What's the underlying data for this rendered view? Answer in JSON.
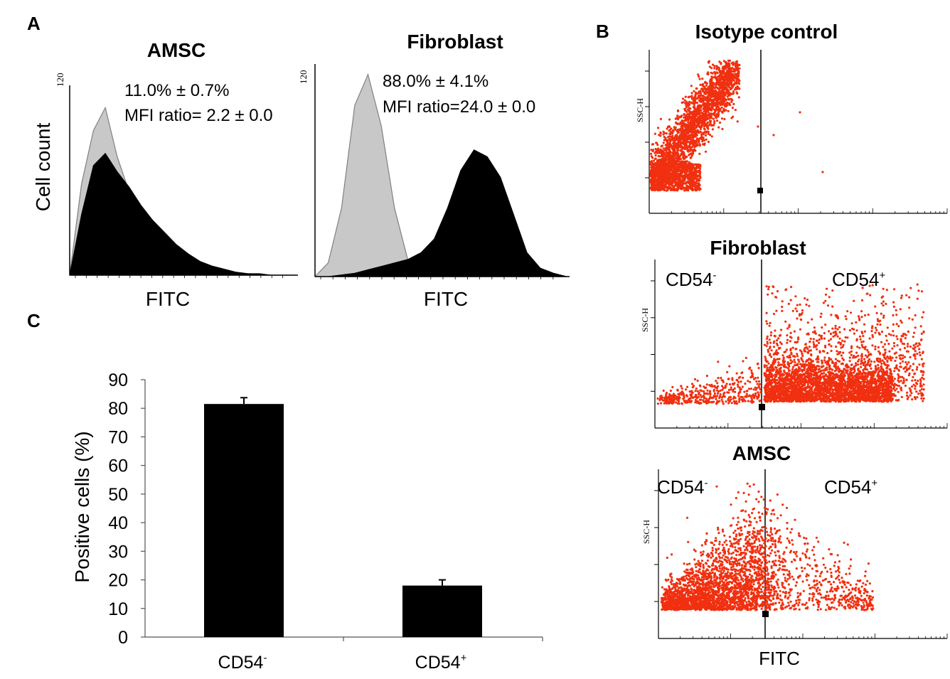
{
  "panels": {
    "A": {
      "label": "A",
      "left": {
        "title": "AMSC",
        "stat_line1": "11.0% ± 0.7%",
        "stat_line2": "MFI ratio= 2.2 ± 0.0",
        "ytick": "120",
        "ylabel": "Cell count",
        "xlabel": "FITC"
      },
      "right": {
        "title": "Fibroblast",
        "stat_line1": "88.0% ± 4.1%",
        "stat_line2": "MFI ratio=24.0 ± 0.0",
        "ytick": "120",
        "xlabel": "FITC"
      }
    },
    "B": {
      "label": "B",
      "plots": [
        {
          "title": "Isotype control",
          "ylabel": "SSC-H",
          "neg_label": "",
          "pos_label": ""
        },
        {
          "title": "Fibroblast",
          "ylabel": "SSC-H",
          "neg_label": "CD54",
          "neg_sup": "-",
          "pos_label": "CD54",
          "pos_sup": "+"
        },
        {
          "title": "AMSC",
          "ylabel": "SSC-H",
          "neg_label": "CD54",
          "neg_sup": "-",
          "pos_label": "CD54",
          "pos_sup": "+"
        }
      ],
      "xlabel": "FITC"
    },
    "C": {
      "label": "C",
      "ylabel": "Positive cells (%)",
      "cat1": "CD54",
      "cat1_sup": "-",
      "cat2": "CD54",
      "cat2_sup": "+"
    }
  },
  "colors": {
    "dot": "#f03010",
    "bar": "#000000",
    "hist_control": "#c8c8c8",
    "hist_control_outline": "#808080",
    "hist_sample": "#000000"
  },
  "chart_data": [
    {
      "type": "area",
      "panel": "A-left",
      "title": "AMSC",
      "xlabel": "FITC",
      "ylabel": "Cell count",
      "ylim": [
        0,
        120
      ],
      "annotations": [
        "11.0% ± 0.7%",
        "MFI ratio= 2.2 ± 0.0"
      ],
      "series": [
        {
          "values": [
            0,
            60,
            95,
            110,
            78,
            55,
            42,
            32,
            24,
            17,
            12,
            8,
            5,
            3,
            2,
            1,
            0,
            0,
            0,
            0
          ]
        },
        {
          "values": [
            0,
            40,
            72,
            80,
            68,
            58,
            46,
            36,
            28,
            20,
            14,
            9,
            6,
            4,
            2,
            1,
            1,
            0,
            0,
            0
          ]
        }
      ]
    },
    {
      "type": "area",
      "panel": "A-right",
      "title": "Fibroblast",
      "xlabel": "FITC",
      "ylim": [
        0,
        120
      ],
      "annotations": [
        "88.0% ± 4.1%",
        "MFI ratio=24.0 ± 0.0"
      ],
      "series": [
        {
          "values": [
            0,
            8,
            40,
            100,
            118,
            88,
            40,
            10,
            2,
            0,
            0,
            0,
            0,
            0,
            0,
            0,
            0,
            0,
            0,
            0
          ]
        },
        {
          "values": [
            0,
            0,
            1,
            2,
            4,
            6,
            8,
            10,
            14,
            22,
            40,
            62,
            74,
            70,
            58,
            36,
            14,
            5,
            2,
            0
          ]
        }
      ]
    },
    {
      "type": "scatter",
      "panel": "B-isotype",
      "title": "Isotype control",
      "xlabel": "FITC",
      "ylabel": "SSC-H",
      "points": [
        [
          0.4,
          0.1
        ],
        [
          0.7,
          0.3
        ],
        [
          1.0,
          0.45
        ],
        [
          1.2,
          0.6
        ],
        [
          1.5,
          0.8
        ],
        [
          0.3,
          0.15
        ],
        [
          0.9,
          0.55
        ],
        [
          1.1,
          0.7
        ]
      ]
    },
    {
      "type": "scatter",
      "panel": "B-fibroblast",
      "title": "Fibroblast",
      "xlabel": "FITC",
      "ylabel": "SSC-H",
      "points": [
        [
          2.3,
          0.1
        ],
        [
          2.6,
          0.2
        ],
        [
          2.9,
          0.15
        ],
        [
          2.2,
          0.4
        ],
        [
          3.0,
          0.3
        ],
        [
          1.4,
          0.05
        ],
        [
          2.0,
          0.6
        ]
      ]
    },
    {
      "type": "scatter",
      "panel": "B-amsc",
      "title": "AMSC",
      "xlabel": "FITC",
      "ylabel": "SSC-H",
      "points": [
        [
          0.4,
          0.05
        ],
        [
          0.8,
          0.2
        ],
        [
          1.2,
          0.4
        ],
        [
          1.4,
          0.6
        ],
        [
          1.7,
          0.3
        ],
        [
          2.0,
          0.2
        ],
        [
          1.0,
          0.1
        ]
      ]
    },
    {
      "type": "bar",
      "panel": "C",
      "categories": [
        "CD54-",
        "CD54+"
      ],
      "values": [
        81.5,
        18
      ],
      "errors": [
        2.2,
        2.0
      ],
      "ylabel": "Positive cells (%)",
      "ylim": [
        0,
        90
      ],
      "yticks": [
        0,
        10,
        20,
        30,
        40,
        50,
        60,
        70,
        80,
        90
      ],
      "grid": false
    }
  ]
}
